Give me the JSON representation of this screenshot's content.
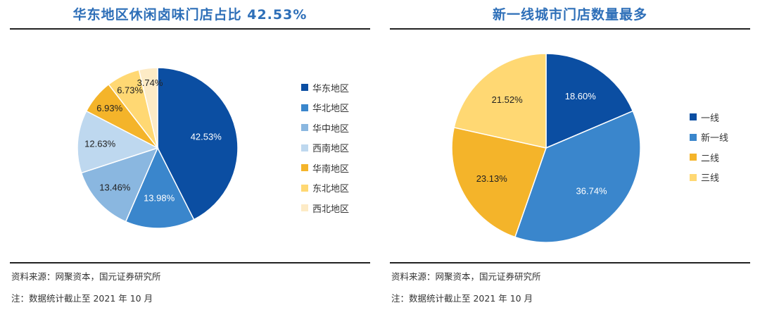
{
  "chart_data": [
    {
      "type": "pie",
      "title": "华东地区休闲卤味门店占比 42.53%",
      "categories": [
        "华东地区",
        "华北地区",
        "华中地区",
        "西南地区",
        "华南地区",
        "东北地区",
        "西北地区"
      ],
      "values": [
        42.53,
        13.98,
        13.46,
        12.63,
        6.93,
        6.73,
        3.74
      ],
      "value_labels": [
        "42.53%",
        "13.98%",
        "13.46%",
        "12.63%",
        "6.93%",
        "6.73%",
        "3.74%"
      ],
      "colors": [
        "#0b4ea2",
        "#3a86cc",
        "#8ab7e0",
        "#bed8ef",
        "#f4b42a",
        "#ffd873",
        "#fdebc6"
      ],
      "label_colors": [
        "#ffffff",
        "#ffffff",
        "#222222",
        "#222222",
        "#222222",
        "#222222",
        "#222222"
      ],
      "legend_position": "right"
    },
    {
      "type": "pie",
      "title": "新一线城市门店数量最多",
      "categories": [
        "一线",
        "新一线",
        "二线",
        "三线"
      ],
      "values": [
        18.6,
        36.74,
        23.13,
        21.52
      ],
      "value_labels": [
        "18.60%",
        "36.74%",
        "23.13%",
        "21.52%"
      ],
      "colors": [
        "#0b4ea2",
        "#3a86cc",
        "#f4b42a",
        "#ffd873"
      ],
      "label_colors": [
        "#ffffff",
        "#ffffff",
        "#222222",
        "#222222"
      ],
      "legend_position": "right"
    }
  ],
  "notes": {
    "left_source": "资料来源：网聚资本，国元证券研究所",
    "left_note": "注：数据统计截止至 2021 年 10 月",
    "right_source": "资料来源：网聚资本，国元证券研究所",
    "right_note": "注：数据统计截止至 2021 年 10 月"
  }
}
